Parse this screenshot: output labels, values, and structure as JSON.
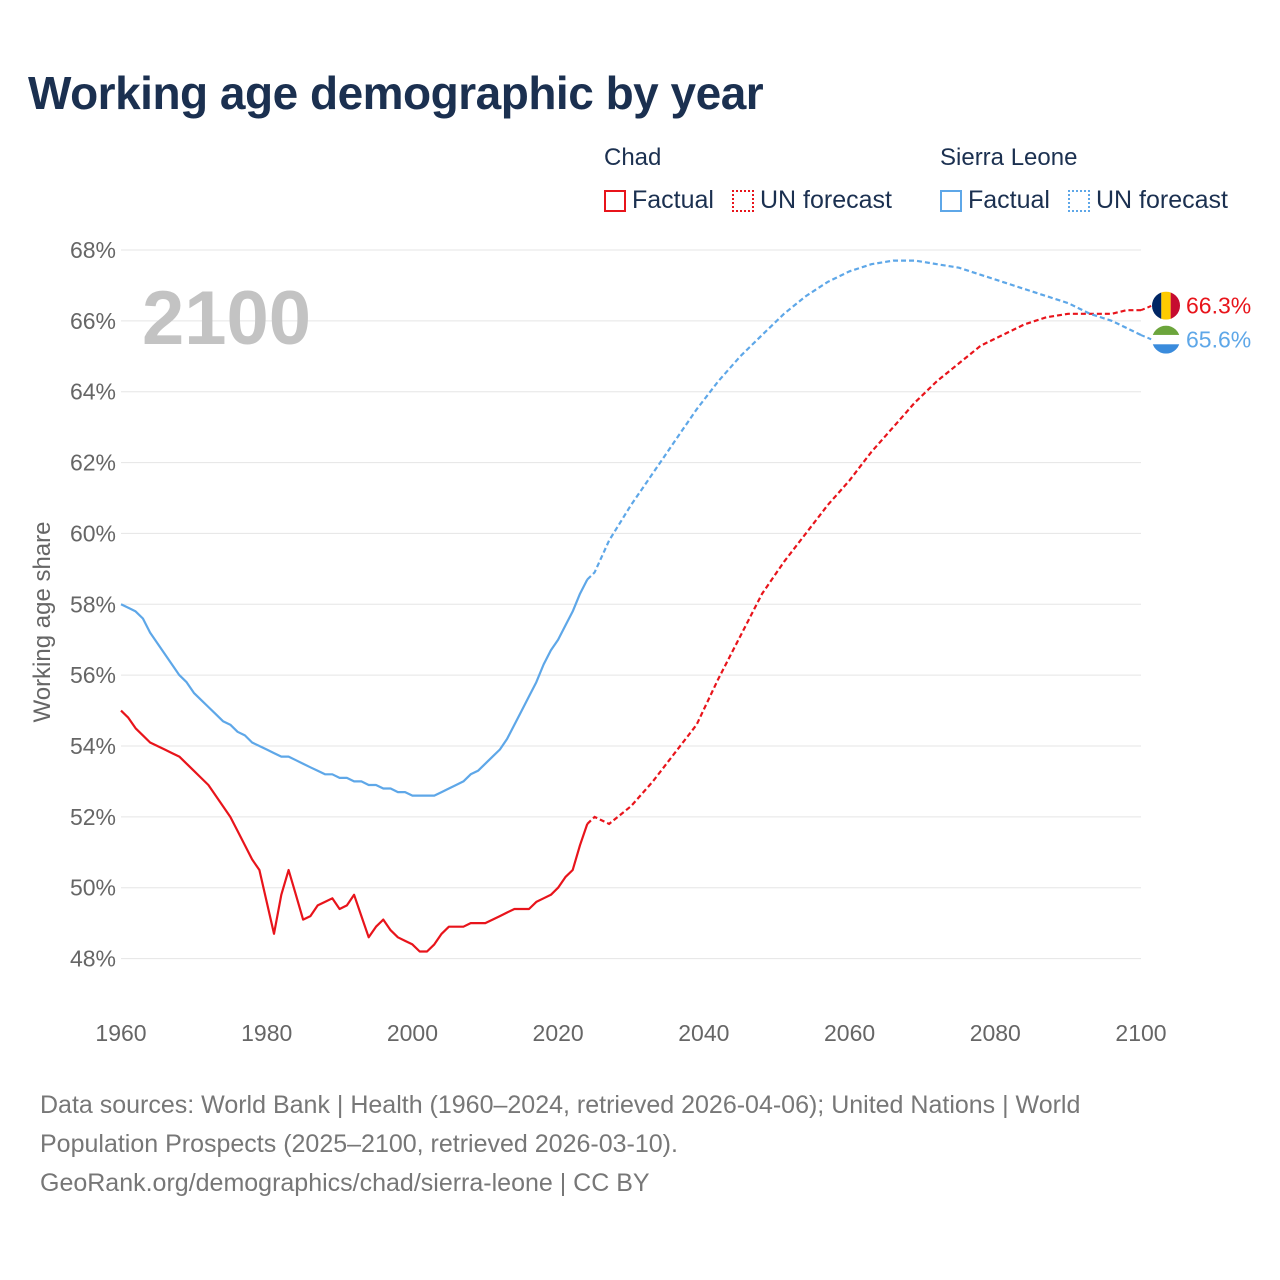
{
  "title": "Working age demographic by year",
  "legend": {
    "groups": [
      {
        "country": "Chad",
        "color": "#e8141b",
        "factual_label": "Factual",
        "forecast_label": "UN forecast"
      },
      {
        "country": "Sierra Leone",
        "color": "#5ea7e8",
        "factual_label": "Factual",
        "forecast_label": "UN forecast"
      }
    ]
  },
  "footer": {
    "line1": "Data sources: World Bank | Health (1960–2024, retrieved 2026-04-06); United Nations | World",
    "line2": "Population Prospects (2025–2100, retrieved 2026-03-10).",
    "line3": "GeoRank.org/demographics/chad/sierra-leone | CC BY"
  },
  "chart_data": {
    "type": "line",
    "title": "Working age demographic by year",
    "year_watermark": "2100",
    "xlabel": "",
    "ylabel": "Working age share",
    "xlim": [
      1960,
      2100
    ],
    "ylim": [
      47,
      68
    ],
    "x_ticks": [
      1960,
      1980,
      2000,
      2020,
      2040,
      2060,
      2080,
      2100
    ],
    "x_tick_labels": [
      "1960",
      "1980",
      "2000",
      "2020",
      "2040",
      "2060",
      "2080",
      "2100"
    ],
    "y_ticks": [
      48,
      50,
      52,
      54,
      56,
      58,
      60,
      62,
      64,
      66,
      68
    ],
    "y_tick_labels": [
      "48%",
      "50%",
      "52%",
      "54%",
      "56%",
      "58%",
      "60%",
      "62%",
      "64%",
      "66%",
      "68%"
    ],
    "grid": true,
    "series": [
      {
        "name": "Chad",
        "color": "#e8141b",
        "end_label": "66.3%",
        "flag": "chad-flag",
        "factual": {
          "x": [
            1960,
            1961,
            1962,
            1963,
            1964,
            1965,
            1966,
            1967,
            1968,
            1969,
            1970,
            1971,
            1972,
            1973,
            1974,
            1975,
            1976,
            1977,
            1978,
            1979,
            1980,
            1981,
            1982,
            1983,
            1984,
            1985,
            1986,
            1987,
            1988,
            1989,
            1990,
            1991,
            1992,
            1993,
            1994,
            1995,
            1996,
            1997,
            1998,
            1999,
            2000,
            2001,
            2002,
            2003,
            2004,
            2005,
            2006,
            2007,
            2008,
            2009,
            2010,
            2011,
            2012,
            2013,
            2014,
            2015,
            2016,
            2017,
            2018,
            2019,
            2020,
            2021,
            2022,
            2023,
            2024
          ],
          "y": [
            55.0,
            54.8,
            54.5,
            54.3,
            54.1,
            54.0,
            53.9,
            53.8,
            53.7,
            53.5,
            53.3,
            53.1,
            52.9,
            52.6,
            52.3,
            52.0,
            51.6,
            51.2,
            50.8,
            50.5,
            49.6,
            48.7,
            49.8,
            50.5,
            49.8,
            49.1,
            49.2,
            49.5,
            49.6,
            49.7,
            49.4,
            49.5,
            49.8,
            49.2,
            48.6,
            48.9,
            49.1,
            48.8,
            48.6,
            48.5,
            48.4,
            48.2,
            48.2,
            48.4,
            48.7,
            48.9,
            48.9,
            48.9,
            49.0,
            49.0,
            49.0,
            49.1,
            49.2,
            49.3,
            49.4,
            49.4,
            49.4,
            49.6,
            49.7,
            49.8,
            50.0,
            50.3,
            50.5,
            51.2,
            51.8
          ]
        },
        "forecast": {
          "x": [
            2024,
            2025,
            2027,
            2030,
            2033,
            2036,
            2039,
            2042,
            2045,
            2048,
            2051,
            2054,
            2057,
            2060,
            2063,
            2066,
            2069,
            2072,
            2075,
            2078,
            2081,
            2084,
            2087,
            2090,
            2093,
            2096,
            2098,
            2100
          ],
          "y": [
            51.8,
            52.0,
            51.8,
            52.3,
            53.0,
            53.8,
            54.6,
            55.9,
            57.1,
            58.3,
            59.2,
            60.0,
            60.8,
            61.5,
            62.3,
            63.0,
            63.7,
            64.3,
            64.8,
            65.3,
            65.6,
            65.9,
            66.1,
            66.2,
            66.2,
            66.2,
            66.3,
            66.3
          ]
        }
      },
      {
        "name": "Sierra Leone",
        "color": "#5ea7e8",
        "end_label": "65.6%",
        "flag": "sierra-leone-flag",
        "factual": {
          "x": [
            1960,
            1961,
            1962,
            1963,
            1964,
            1965,
            1966,
            1967,
            1968,
            1969,
            1970,
            1971,
            1972,
            1973,
            1974,
            1975,
            1976,
            1977,
            1978,
            1979,
            1980,
            1981,
            1982,
            1983,
            1984,
            1985,
            1986,
            1987,
            1988,
            1989,
            1990,
            1991,
            1992,
            1993,
            1994,
            1995,
            1996,
            1997,
            1998,
            1999,
            2000,
            2001,
            2002,
            2003,
            2004,
            2005,
            2006,
            2007,
            2008,
            2009,
            2010,
            2011,
            2012,
            2013,
            2014,
            2015,
            2016,
            2017,
            2018,
            2019,
            2020,
            2021,
            2022,
            2023,
            2024
          ],
          "y": [
            58.0,
            57.9,
            57.8,
            57.6,
            57.2,
            56.9,
            56.6,
            56.3,
            56.0,
            55.8,
            55.5,
            55.3,
            55.1,
            54.9,
            54.7,
            54.6,
            54.4,
            54.3,
            54.1,
            54.0,
            53.9,
            53.8,
            53.7,
            53.7,
            53.6,
            53.5,
            53.4,
            53.3,
            53.2,
            53.2,
            53.1,
            53.1,
            53.0,
            53.0,
            52.9,
            52.9,
            52.8,
            52.8,
            52.7,
            52.7,
            52.6,
            52.6,
            52.6,
            52.6,
            52.7,
            52.8,
            52.9,
            53.0,
            53.2,
            53.3,
            53.5,
            53.7,
            53.9,
            54.2,
            54.6,
            55.0,
            55.4,
            55.8,
            56.3,
            56.7,
            57.0,
            57.4,
            57.8,
            58.3,
            58.7
          ]
        },
        "forecast": {
          "x": [
            2024,
            2025,
            2027,
            2030,
            2033,
            2036,
            2039,
            2042,
            2045,
            2048,
            2051,
            2054,
            2057,
            2060,
            2063,
            2066,
            2069,
            2072,
            2075,
            2078,
            2081,
            2084,
            2087,
            2090,
            2093,
            2096,
            2098,
            2100
          ],
          "y": [
            58.7,
            58.9,
            59.8,
            60.8,
            61.7,
            62.6,
            63.5,
            64.3,
            65.0,
            65.6,
            66.2,
            66.7,
            67.1,
            67.4,
            67.6,
            67.7,
            67.7,
            67.6,
            67.5,
            67.3,
            67.1,
            66.9,
            66.7,
            66.5,
            66.2,
            66.0,
            65.8,
            65.6
          ]
        }
      }
    ]
  }
}
